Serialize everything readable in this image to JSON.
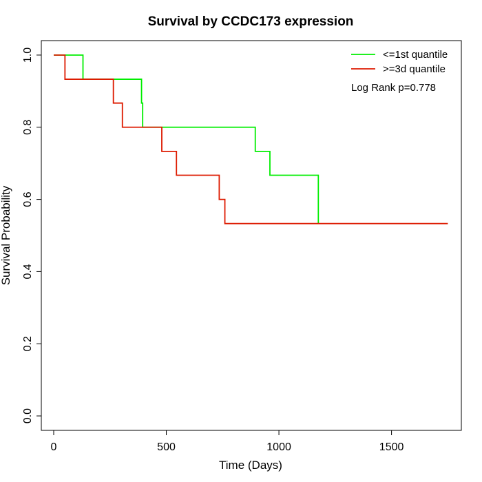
{
  "chart_data": {
    "type": "line",
    "step": true,
    "title": "Survival by CCDC173 expression",
    "xlabel": "Time (Days)",
    "ylabel": "Survival Probability",
    "xlim": [
      -55,
      1810
    ],
    "ylim": [
      -0.04,
      1.04
    ],
    "xticks": [
      0,
      500,
      1000,
      1500
    ],
    "xtick_labels": [
      "0",
      "500",
      "1000",
      "1500"
    ],
    "yticks": [
      0.0,
      0.2,
      0.4,
      0.6,
      0.8,
      1.0
    ],
    "ytick_labels": [
      "0.0",
      "0.2",
      "0.4",
      "0.6",
      "0.8",
      "1.0"
    ],
    "grid": false,
    "legend_position": "top-right",
    "annotation": "Log Rank p=0.778",
    "series": [
      {
        "name": "<=1st quantile",
        "color": "#00ee00",
        "x": [
          0,
          130,
          390,
          395,
          895,
          960,
          1175
        ],
        "y": [
          1.0,
          0.933,
          0.867,
          0.8,
          0.733,
          0.667,
          0.533
        ]
      },
      {
        "name": ">=3d quantile",
        "color": "#dd1a00",
        "x": [
          0,
          50,
          265,
          305,
          480,
          545,
          735,
          760,
          1750
        ],
        "y": [
          1.0,
          0.933,
          0.867,
          0.8,
          0.733,
          0.667,
          0.6,
          0.533,
          0.533
        ]
      }
    ]
  }
}
